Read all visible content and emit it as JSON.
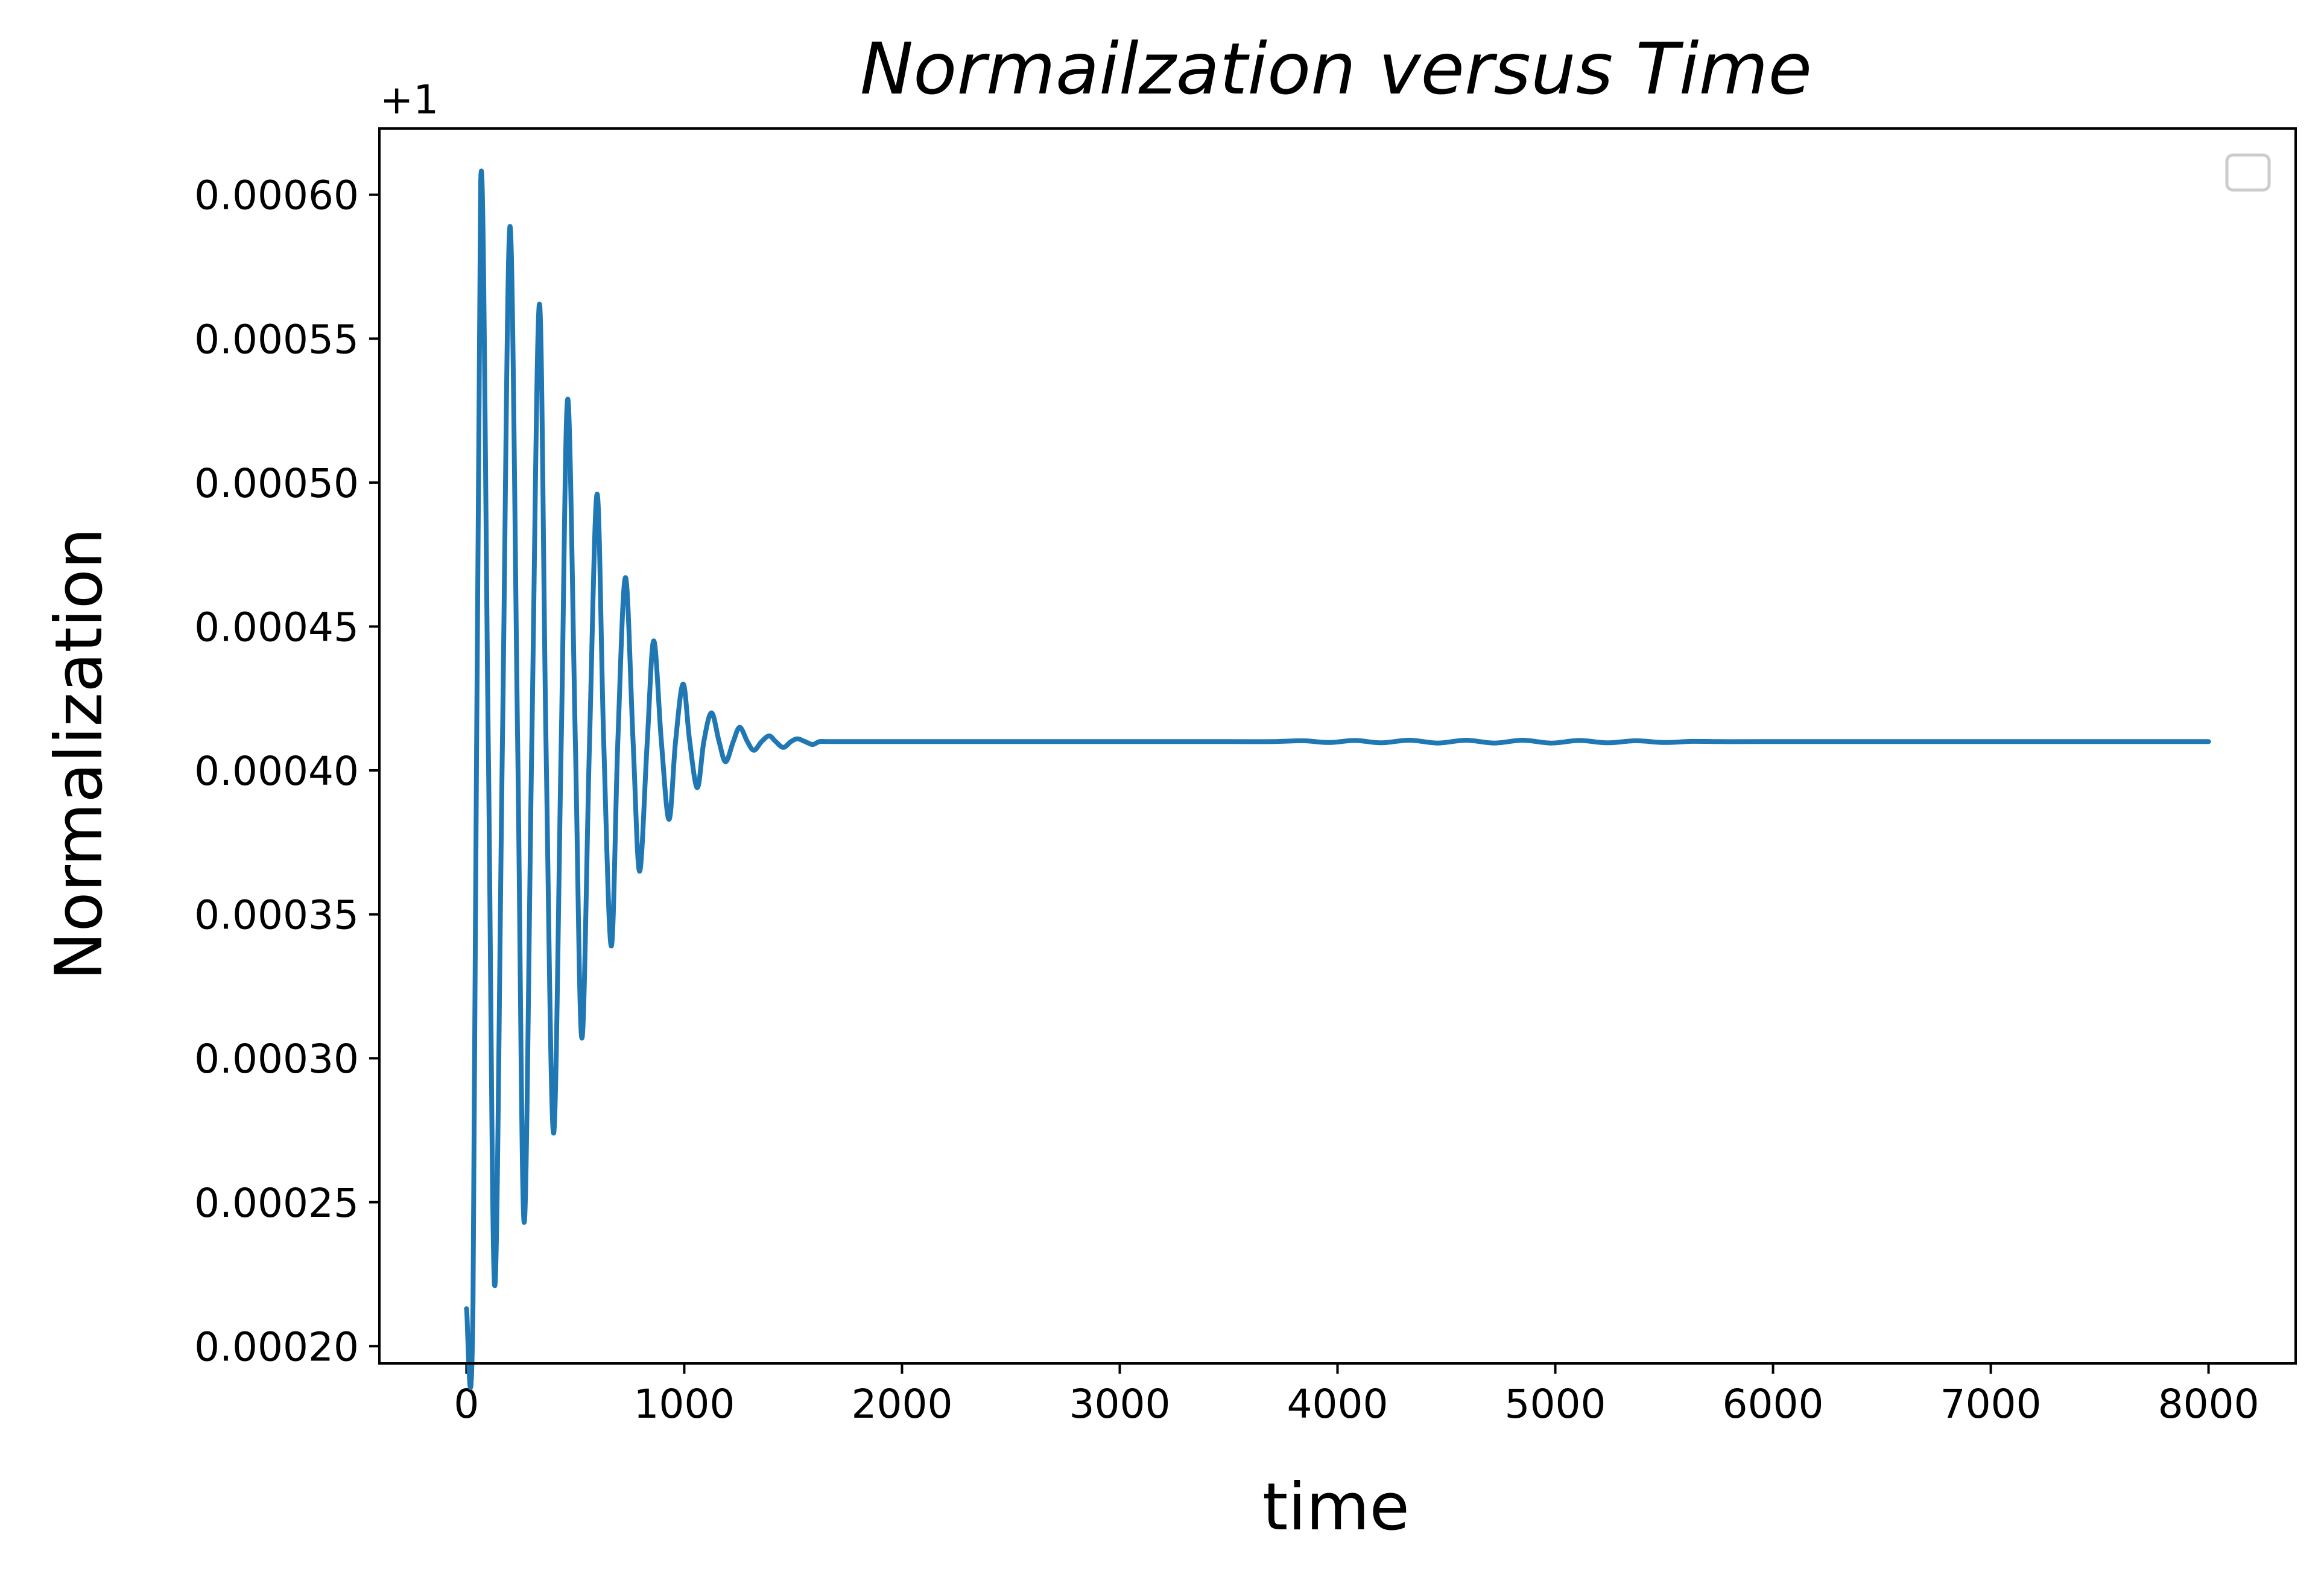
{
  "chart_data": {
    "type": "line",
    "title": "Normailzation versus Time",
    "xlabel": "time",
    "ylabel": "Normalization",
    "y_offset_label": "+1",
    "xlim": [
      -400,
      8400
    ],
    "ylim": [
      0.000194,
      0.000623
    ],
    "x_ticks": [
      0,
      1000,
      2000,
      3000,
      4000,
      5000,
      6000,
      7000,
      8000
    ],
    "y_ticks": [
      0.0002,
      0.00025,
      0.0003,
      0.00035,
      0.0004,
      0.00045,
      0.0005,
      0.00055,
      0.0006
    ],
    "x_tick_labels": [
      "0",
      "1000",
      "2000",
      "3000",
      "4000",
      "5000",
      "6000",
      "7000",
      "8000"
    ],
    "y_tick_labels": [
      "0.00020",
      "0.00025",
      "0.00030",
      "0.00035",
      "0.00040",
      "0.00045",
      "0.00050",
      "0.00055",
      "0.00060"
    ],
    "grid": false,
    "legend": {
      "position": "top-right",
      "entries": []
    },
    "line_color": "#1f77b4",
    "series": [
      {
        "x": [
          0,
          30,
          65,
          100,
          130,
          165,
          200,
          235,
          265,
          300,
          335,
          365,
          400,
          435,
          465,
          500,
          530,
          565,
          600,
          630,
          665,
          695,
          730,
          765,
          795,
          830,
          860,
          895,
          930,
          960,
          995,
          1025,
          1060,
          1090,
          1125,
          1160,
          1190,
          1225,
          1255,
          1290,
          1320,
          1355,
          1390,
          1420,
          1455,
          1490,
          1520,
          1555,
          1590,
          1620,
          1655,
          1690,
          1720,
          1760,
          1800,
          1900,
          2000,
          3000,
          3500,
          3700,
          3840,
          3960,
          4080,
          4200,
          4330,
          4460,
          4590,
          4720,
          4850,
          4980,
          5110,
          5240,
          5370,
          5500,
          5630,
          5760,
          6000,
          7000,
          8000
        ],
        "y": [
          0.000213,
          0.000215,
          0.000604,
          0.00041,
          0.000221,
          0.00041,
          0.000589,
          0.00041,
          0.000243,
          0.00041,
          0.000562,
          0.00041,
          0.000274,
          0.00041,
          0.000529,
          0.00041,
          0.000307,
          0.00041,
          0.000496,
          0.00041,
          0.000339,
          0.00041,
          0.000467,
          0.00041,
          0.000365,
          0.00041,
          0.000445,
          0.00041,
          0.000383,
          0.00041,
          0.00043,
          0.00041,
          0.000394,
          0.00041,
          0.00042,
          0.00041,
          0.000403,
          0.00041,
          0.000415,
          0.00041,
          0.000407,
          0.00041,
          0.000412,
          0.00041,
          0.000408,
          0.00041,
          0.000411,
          0.00041,
          0.000409,
          0.00041,
          0.00041,
          0.00041,
          0.00041,
          0.00041,
          0.00041,
          0.00041,
          0.00041,
          0.00041,
          0.00041,
          0.00041,
          0.0004103,
          0.0004097,
          0.0004104,
          0.0004096,
          0.0004105,
          0.0004095,
          0.0004105,
          0.0004095,
          0.0004105,
          0.0004095,
          0.0004104,
          0.0004096,
          0.0004103,
          0.0004097,
          0.0004101,
          0.00041,
          0.00041,
          0.00041,
          0.00041
        ]
      }
    ]
  }
}
